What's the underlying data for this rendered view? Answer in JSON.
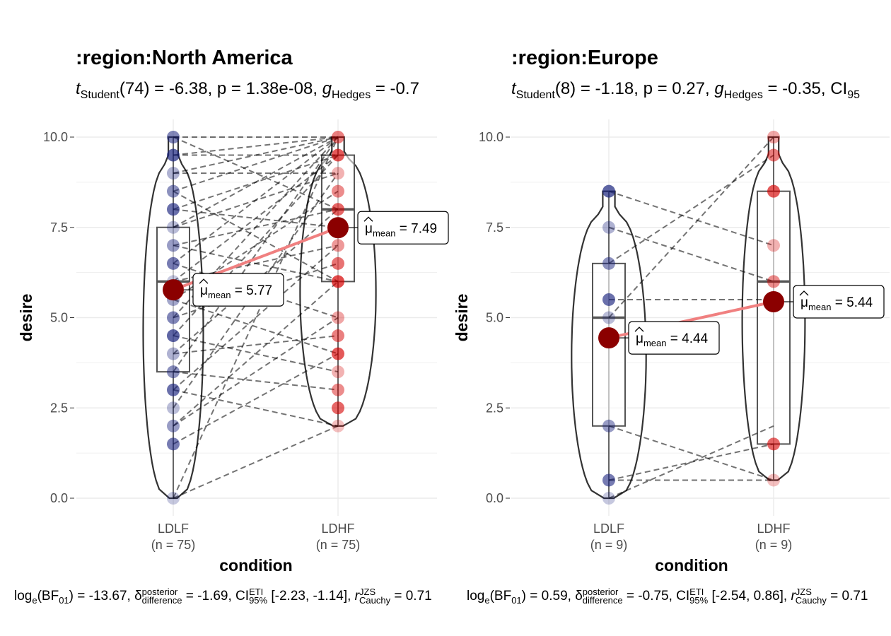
{
  "chart_data": [
    {
      "type": "violin-box-scatter (paired)",
      "title": ":region:North America",
      "subtitle": {
        "t_label": "t",
        "t_sub": "Student",
        "df": "(74)",
        "text": " = -6.38, p = 1.38e-08, ",
        "g_label": "g",
        "g_sub": "Hedges",
        "g_value": " = -0.7"
      },
      "xlabel": "condition",
      "ylabel": "desire",
      "ylim": [
        0,
        10
      ],
      "yticks": [
        "0.0",
        "2.5",
        "5.0",
        "7.5",
        "10.0"
      ],
      "categories": [
        {
          "name": "LDLF",
          "n_label": "(n = 75)",
          "color": "#1a237e"
        },
        {
          "name": "LDHF",
          "n_label": "(n = 75)",
          "color": "#d50000"
        }
      ],
      "points": {
        "LDLF": [
          0,
          1.5,
          2,
          2.5,
          3,
          3.5,
          4,
          4.5,
          5,
          5.5,
          6,
          6.5,
          7,
          7.5,
          8,
          8.5,
          9,
          9.5,
          10
        ],
        "LDHF": [
          2,
          2.5,
          3,
          3.5,
          4,
          4.5,
          5,
          6,
          6.5,
          7,
          7.5,
          8,
          8.5,
          9,
          9.5,
          10
        ]
      },
      "pairs": [
        [
          0,
          10
        ],
        [
          0,
          2
        ],
        [
          1.5,
          4
        ],
        [
          2,
          6
        ],
        [
          2,
          5
        ],
        [
          2.5,
          9
        ],
        [
          3,
          2
        ],
        [
          3,
          7
        ],
        [
          3.5,
          3
        ],
        [
          3.5,
          10
        ],
        [
          4,
          8
        ],
        [
          4,
          4.5
        ],
        [
          4.5,
          9.5
        ],
        [
          4.5,
          3.5
        ],
        [
          5,
          6.5
        ],
        [
          5,
          10
        ],
        [
          5.5,
          4
        ],
        [
          5.5,
          8.5
        ],
        [
          6,
          7
        ],
        [
          6,
          9.5
        ],
        [
          6.5,
          5
        ],
        [
          6.5,
          10
        ],
        [
          7,
          8
        ],
        [
          7,
          6
        ],
        [
          7.5,
          9
        ],
        [
          7.5,
          10
        ],
        [
          8,
          9.5
        ],
        [
          8,
          7.5
        ],
        [
          8.5,
          10
        ],
        [
          8.5,
          6
        ],
        [
          9,
          9
        ],
        [
          9,
          10
        ],
        [
          9.5,
          10
        ],
        [
          9.5,
          9.5
        ],
        [
          10,
          10
        ],
        [
          10,
          8
        ]
      ],
      "box": {
        "LDLF": {
          "q1": 3.5,
          "median": 6,
          "q3": 7.5
        },
        "LDHF": {
          "q1": 6,
          "median": 8,
          "q3": 9.5
        }
      },
      "violin_range": {
        "LDLF": [
          0,
          10
        ],
        "LDHF": [
          2,
          10
        ]
      },
      "means": {
        "LDLF": 5.77,
        "LDHF": 7.49
      },
      "mean_labels": {
        "LDLF": "5.77",
        "LDHF": "7.49"
      },
      "mean_prefix": "μ",
      "mean_sub": "mean",
      "caption": {
        "log_label": "log",
        "log_sub": "e",
        "bf_label": "(BF",
        "bf_sub": "01",
        "bf_value": ") = -13.67, ",
        "delta_label": "δ",
        "delta_sup": "posterior",
        "delta_sub": "difference",
        "delta_value": " = -1.69, CI",
        "ci_sup": "ETI",
        "ci_sub": "95%",
        "ci_value": " [-2.23, -1.14], ",
        "r_label": "r",
        "r_sup": "JZS",
        "r_sub": "Cauchy",
        "r_value": " = 0.71"
      }
    },
    {
      "type": "violin-box-scatter (paired)",
      "title": ":region:Europe",
      "subtitle": {
        "t_label": "t",
        "t_sub": "Student",
        "df": "(8)",
        "text": " = -1.18, p = 0.27, ",
        "g_label": "g",
        "g_sub": "Hedges",
        "g_value": " = -0.35, CI",
        "ci_sub": "95"
      },
      "xlabel": "condition",
      "ylabel": "desire",
      "ylim": [
        0,
        10
      ],
      "yticks": [
        "0.0",
        "2.5",
        "5.0",
        "7.5",
        "10.0"
      ],
      "categories": [
        {
          "name": "LDLF",
          "n_label": "(n = 9)",
          "color": "#1a237e"
        },
        {
          "name": "LDHF",
          "n_label": "(n = 9)",
          "color": "#d50000"
        }
      ],
      "points": {
        "LDLF": [
          0,
          0.5,
          2,
          5,
          5.5,
          6.5,
          7.5,
          8.5
        ],
        "LDHF": [
          0.5,
          1.5,
          6,
          7,
          8.5,
          9.5,
          10
        ]
      },
      "pairs": [
        [
          0,
          2
        ],
        [
          0.5,
          1.5
        ],
        [
          0.5,
          0.5
        ],
        [
          2,
          0.5
        ],
        [
          5,
          10
        ],
        [
          5.5,
          5.5
        ],
        [
          6.5,
          9.5
        ],
        [
          7.5,
          6
        ],
        [
          8.5,
          7
        ]
      ],
      "box": {
        "LDLF": {
          "q1": 2,
          "median": 5,
          "q3": 6.5
        },
        "LDHF": {
          "q1": 1.5,
          "median": 6,
          "q3": 8.5
        }
      },
      "violin_range": {
        "LDLF": [
          0,
          8.5
        ],
        "LDHF": [
          0.5,
          10
        ]
      },
      "means": {
        "LDLF": 4.44,
        "LDHF": 5.44
      },
      "mean_labels": {
        "LDLF": "4.44",
        "LDHF": "5.44"
      },
      "mean_prefix": "μ",
      "mean_sub": "mean",
      "caption": {
        "log_label": "log",
        "log_sub": "e",
        "bf_label": "(BF",
        "bf_sub": "01",
        "bf_value": ") = 0.59, ",
        "delta_label": "δ",
        "delta_sup": "posterior",
        "delta_sub": "difference",
        "delta_value": " = -0.75, CI",
        "ci_sup": "ETI",
        "ci_sub": "95%",
        "ci_value": " [-2.54, 0.86], ",
        "r_label": "r",
        "r_sup": "JZS",
        "r_sub": "Cauchy",
        "r_value": " = 0.71"
      }
    }
  ],
  "colors": {
    "low": "#1a237e",
    "high": "#d50000",
    "mean_dot": "#8b0000",
    "mean_line": "#f08080",
    "grid": "#ebebeb"
  }
}
